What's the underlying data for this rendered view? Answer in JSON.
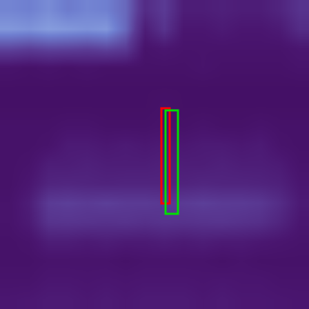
{
  "chart_data": {
    "type": "heatmap",
    "tick_labels": false,
    "xlim": [
      0,
      448
    ],
    "ylim": [
      448,
      0
    ],
    "zlim": [
      0,
      1
    ],
    "cells": [
      [
        0.72,
        0.7,
        0.75,
        0.68,
        0.72,
        0.7,
        0.6,
        0.3,
        0.4,
        0.2,
        0.2,
        0.22,
        0.2,
        0.2,
        0.25,
        0.35
      ],
      [
        0.8,
        0.78,
        0.82,
        0.8,
        0.78,
        0.8,
        0.6,
        0.2,
        0.35,
        0.15,
        0.15,
        0.18,
        0.15,
        0.15,
        0.18,
        0.3
      ],
      [
        0.45,
        0.42,
        0.45,
        0.44,
        0.42,
        0.45,
        0.4,
        0.12,
        0.15,
        0.12,
        0.12,
        0.12,
        0.12,
        0.12,
        0.12,
        0.15
      ],
      [
        0.12,
        0.1,
        0.12,
        0.1,
        0.12,
        0.1,
        0.1,
        0.1,
        0.1,
        0.1,
        0.12,
        0.1,
        0.1,
        0.1,
        0.1,
        0.12
      ],
      [
        0.08,
        0.08,
        0.08,
        0.08,
        0.08,
        0.08,
        0.08,
        0.08,
        0.08,
        0.08,
        0.08,
        0.08,
        0.08,
        0.08,
        0.08,
        0.08
      ],
      [
        0.08,
        0.08,
        0.08,
        0.08,
        0.08,
        0.08,
        0.08,
        0.08,
        0.1,
        0.08,
        0.08,
        0.08,
        0.08,
        0.08,
        0.08,
        0.08
      ],
      [
        0.1,
        0.1,
        0.1,
        0.12,
        0.12,
        0.1,
        0.1,
        0.1,
        0.12,
        0.1,
        0.12,
        0.1,
        0.1,
        0.12,
        0.1,
        0.1
      ],
      [
        0.1,
        0.1,
        0.12,
        0.18,
        0.18,
        0.16,
        0.18,
        0.16,
        0.18,
        0.16,
        0.18,
        0.18,
        0.16,
        0.18,
        0.12,
        0.1
      ],
      [
        0.1,
        0.12,
        0.2,
        0.2,
        0.22,
        0.2,
        0.2,
        0.2,
        0.22,
        0.2,
        0.2,
        0.22,
        0.2,
        0.2,
        0.18,
        0.12
      ],
      [
        0.1,
        0.15,
        0.25,
        0.26,
        0.25,
        0.24,
        0.25,
        0.25,
        0.25,
        0.24,
        0.26,
        0.25,
        0.25,
        0.24,
        0.22,
        0.15
      ],
      [
        0.12,
        0.2,
        0.4,
        0.42,
        0.4,
        0.42,
        0.4,
        0.4,
        0.38,
        0.4,
        0.42,
        0.4,
        0.4,
        0.38,
        0.3,
        0.18
      ],
      [
        0.12,
        0.18,
        0.35,
        0.36,
        0.35,
        0.34,
        0.35,
        0.33,
        0.35,
        0.34,
        0.35,
        0.36,
        0.34,
        0.32,
        0.25,
        0.15
      ],
      [
        0.1,
        0.12,
        0.2,
        0.2,
        0.18,
        0.2,
        0.18,
        0.18,
        0.2,
        0.18,
        0.2,
        0.18,
        0.18,
        0.16,
        0.14,
        0.12
      ],
      [
        0.1,
        0.1,
        0.12,
        0.12,
        0.12,
        0.12,
        0.1,
        0.12,
        0.12,
        0.12,
        0.12,
        0.1,
        0.12,
        0.1,
        0.1,
        0.1
      ],
      [
        0.12,
        0.12,
        0.15,
        0.15,
        0.14,
        0.15,
        0.14,
        0.15,
        0.15,
        0.15,
        0.14,
        0.15,
        0.14,
        0.14,
        0.12,
        0.12
      ],
      [
        0.15,
        0.16,
        0.18,
        0.18,
        0.16,
        0.18,
        0.16,
        0.18,
        0.18,
        0.18,
        0.16,
        0.18,
        0.16,
        0.16,
        0.15,
        0.14
      ]
    ],
    "boxes": [
      {
        "color": "#ff0000",
        "x": [
          234,
          246
        ],
        "y": [
          157,
          295
        ]
      },
      {
        "color": "#00e000",
        "x": [
          240,
          258
        ],
        "y": [
          160,
          310
        ]
      }
    ]
  }
}
